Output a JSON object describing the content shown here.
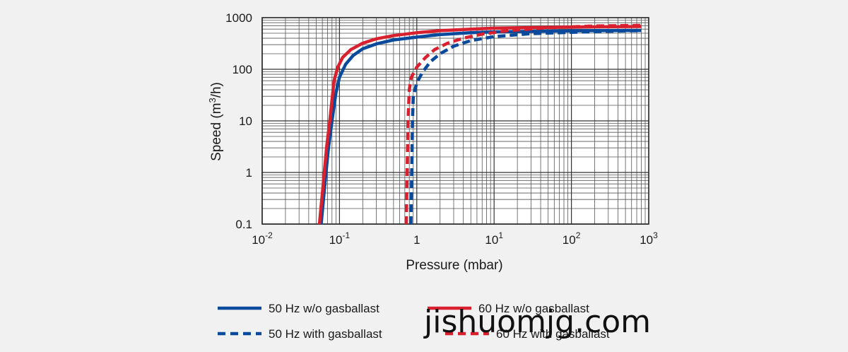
{
  "chart_data": {
    "type": "line",
    "title": "",
    "xlabel": "Pressure (mbar)",
    "ylabel": "Speed (m3/h)",
    "ylabel_main": "Speed (m",
    "ylabel_sup": "3",
    "ylabel_end": "/h)",
    "x_scale": "log",
    "y_scale": "log",
    "xlim": [
      0.01,
      1000
    ],
    "ylim": [
      0.1,
      1000
    ],
    "grid": true,
    "legend_position": "bottom",
    "x_ticks": [
      {
        "value": 0.01,
        "base": "10",
        "exp": "-2"
      },
      {
        "value": 0.1,
        "base": "10",
        "exp": "-1"
      },
      {
        "value": 1,
        "base": "1",
        "exp": ""
      },
      {
        "value": 10,
        "base": "10",
        "exp": "1"
      },
      {
        "value": 100,
        "base": "10",
        "exp": "2"
      },
      {
        "value": 1000,
        "base": "10",
        "exp": "3"
      }
    ],
    "y_ticks": [
      {
        "value": 1000,
        "label": "1000"
      },
      {
        "value": 100,
        "label": "100"
      },
      {
        "value": 10,
        "label": "10"
      },
      {
        "value": 1,
        "label": "1"
      },
      {
        "value": 0.1,
        "label": "0.1"
      }
    ],
    "series": [
      {
        "name": "50 Hz w/o gasballast",
        "color": "#0a4a9c",
        "dash": "solid",
        "points": [
          [
            0.058,
            0.1
          ],
          [
            0.064,
            0.5
          ],
          [
            0.072,
            3
          ],
          [
            0.08,
            10
          ],
          [
            0.09,
            35
          ],
          [
            0.1,
            70
          ],
          [
            0.12,
            125
          ],
          [
            0.15,
            185
          ],
          [
            0.2,
            250
          ],
          [
            0.3,
            310
          ],
          [
            0.5,
            370
          ],
          [
            1,
            420
          ],
          [
            2,
            470
          ],
          [
            5,
            510
          ],
          [
            10,
            530
          ],
          [
            50,
            550
          ],
          [
            200,
            560
          ],
          [
            800,
            565
          ]
        ]
      },
      {
        "name": "50 Hz with gasballast",
        "color": "#0a4a9c",
        "dash": "dashed",
        "points": [
          [
            0.84,
            0.1
          ],
          [
            0.86,
            1
          ],
          [
            0.88,
            10
          ],
          [
            0.9,
            30
          ],
          [
            1.0,
            55
          ],
          [
            1.2,
            90
          ],
          [
            1.5,
            140
          ],
          [
            2,
            200
          ],
          [
            3,
            280
          ],
          [
            5,
            360
          ],
          [
            10,
            430
          ],
          [
            30,
            490
          ],
          [
            100,
            520
          ],
          [
            300,
            545
          ],
          [
            800,
            560
          ]
        ]
      },
      {
        "name": "60 Hz w/o gasballast",
        "color": "#d9202e",
        "dash": "solid",
        "points": [
          [
            0.055,
            0.1
          ],
          [
            0.061,
            0.5
          ],
          [
            0.068,
            3
          ],
          [
            0.075,
            10
          ],
          [
            0.085,
            60
          ],
          [
            0.095,
            110
          ],
          [
            0.11,
            170
          ],
          [
            0.14,
            240
          ],
          [
            0.2,
            320
          ],
          [
            0.3,
            390
          ],
          [
            0.5,
            450
          ],
          [
            1,
            510
          ],
          [
            2,
            560
          ],
          [
            5,
            600
          ],
          [
            10,
            625
          ],
          [
            50,
            650
          ],
          [
            200,
            665
          ],
          [
            800,
            675
          ]
        ]
      },
      {
        "name": "60 Hz with gasballast",
        "color": "#d9202e",
        "dash": "dashed",
        "points": [
          [
            0.73,
            0.1
          ],
          [
            0.75,
            1
          ],
          [
            0.77,
            10
          ],
          [
            0.8,
            40
          ],
          [
            0.85,
            70
          ],
          [
            1.0,
            110
          ],
          [
            1.3,
            170
          ],
          [
            1.7,
            240
          ],
          [
            2.5,
            320
          ],
          [
            4,
            400
          ],
          [
            7,
            480
          ],
          [
            15,
            560
          ],
          [
            50,
            640
          ],
          [
            200,
            690
          ],
          [
            800,
            710
          ]
        ]
      }
    ]
  },
  "watermark": "jishuomjg.com"
}
